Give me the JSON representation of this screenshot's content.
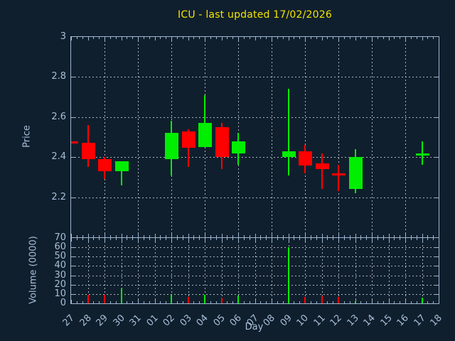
{
  "title": "ICU - last updated 17/02/2026",
  "colors": {
    "background": "#101f2d",
    "axis": "#9cb6d3",
    "text": "#a7bfda",
    "title_text": "#f0e400",
    "grid": "#a9b4bd",
    "up": "#00ee00",
    "down": "#ff0000"
  },
  "chart_data": [
    {
      "type": "candlestick",
      "title": "ICU - last updated 17/02/2026",
      "xlabel": "Day",
      "ylabel": "Price",
      "ylim": [
        2.0,
        3.0
      ],
      "yticks": [
        {
          "value": 3.0,
          "label": "3"
        },
        {
          "value": 2.8,
          "label": "2.8"
        },
        {
          "value": 2.6,
          "label": "2.6"
        },
        {
          "value": 2.4,
          "label": "2.4"
        },
        {
          "value": 2.2,
          "label": "2.2"
        }
      ],
      "categories": [
        "27",
        "28",
        "29",
        "30",
        "31",
        "01",
        "02",
        "03",
        "04",
        "05",
        "06",
        "07",
        "08",
        "09",
        "10",
        "11",
        "12",
        "13",
        "14",
        "15",
        "16",
        "17",
        "18"
      ],
      "grid": {
        "x_every_n_days": 2,
        "y_step": 0.2,
        "style": "dashed"
      },
      "legend": "none",
      "candles": [
        {
          "day": "27",
          "open": 2.48,
          "high": 2.48,
          "low": 2.47,
          "close": 2.47,
          "direction": "down"
        },
        {
          "day": "28",
          "open": 2.47,
          "high": 2.56,
          "low": 2.35,
          "close": 2.39,
          "direction": "down"
        },
        {
          "day": "29",
          "open": 2.39,
          "high": 2.4,
          "low": 2.29,
          "close": 2.33,
          "direction": "down"
        },
        {
          "day": "30",
          "open": 2.33,
          "high": 2.38,
          "low": 2.26,
          "close": 2.38,
          "direction": "up"
        },
        {
          "day": "02",
          "open": 2.39,
          "high": 2.58,
          "low": 2.31,
          "close": 2.52,
          "direction": "up"
        },
        {
          "day": "03",
          "open": 2.53,
          "high": 2.54,
          "low": 2.35,
          "close": 2.45,
          "direction": "down"
        },
        {
          "day": "04",
          "open": 2.45,
          "high": 2.71,
          "low": 2.45,
          "close": 2.57,
          "direction": "up"
        },
        {
          "day": "05",
          "open": 2.55,
          "high": 2.57,
          "low": 2.34,
          "close": 2.4,
          "direction": "down"
        },
        {
          "day": "06",
          "open": 2.42,
          "high": 2.52,
          "low": 2.36,
          "close": 2.48,
          "direction": "up"
        },
        {
          "day": "09",
          "open": 2.4,
          "high": 2.74,
          "low": 2.31,
          "close": 2.43,
          "direction": "up"
        },
        {
          "day": "10",
          "open": 2.43,
          "high": 2.46,
          "low": 2.32,
          "close": 2.36,
          "direction": "down"
        },
        {
          "day": "11",
          "open": 2.37,
          "high": 2.42,
          "low": 2.24,
          "close": 2.34,
          "direction": "down"
        },
        {
          "day": "12",
          "open": 2.32,
          "high": 2.36,
          "low": 2.23,
          "close": 2.31,
          "direction": "down"
        },
        {
          "day": "13",
          "open": 2.24,
          "high": 2.44,
          "low": 2.22,
          "close": 2.4,
          "direction": "up"
        },
        {
          "day": "17",
          "open": 2.41,
          "high": 2.48,
          "low": 2.36,
          "close": 2.42,
          "direction": "up"
        }
      ]
    },
    {
      "type": "bar",
      "ylabel": "Volume (0000)",
      "ylim": [
        0,
        70
      ],
      "yticks": [
        {
          "value": 70,
          "label": "70"
        },
        {
          "value": 60,
          "label": "60"
        },
        {
          "value": 50,
          "label": "50"
        },
        {
          "value": 40,
          "label": "40"
        },
        {
          "value": 30,
          "label": "30"
        },
        {
          "value": 20,
          "label": "20"
        },
        {
          "value": 10,
          "label": "10"
        },
        {
          "value": 0,
          "label": "0"
        }
      ],
      "grid": {
        "x_every_n_days": 1,
        "y_step": 10,
        "style": "dashed"
      },
      "bars": [
        {
          "day": "28",
          "value": 9,
          "direction": "down"
        },
        {
          "day": "29",
          "value": 9,
          "direction": "down"
        },
        {
          "day": "30",
          "value": 16,
          "direction": "up"
        },
        {
          "day": "02",
          "value": 9,
          "direction": "up"
        },
        {
          "day": "03",
          "value": 7,
          "direction": "down"
        },
        {
          "day": "04",
          "value": 9,
          "direction": "up"
        },
        {
          "day": "05",
          "value": 6,
          "direction": "down"
        },
        {
          "day": "06",
          "value": 8,
          "direction": "up"
        },
        {
          "day": "09",
          "value": 60,
          "direction": "up"
        },
        {
          "day": "10",
          "value": 7,
          "direction": "down"
        },
        {
          "day": "11",
          "value": 8,
          "direction": "down"
        },
        {
          "day": "12",
          "value": 7,
          "direction": "down"
        },
        {
          "day": "13",
          "value": 2,
          "direction": "up"
        },
        {
          "day": "17",
          "value": 6,
          "direction": "up"
        }
      ]
    }
  ]
}
